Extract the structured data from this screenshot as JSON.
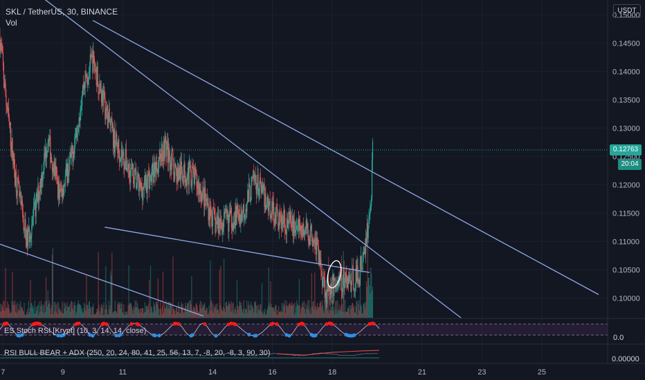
{
  "header": {
    "symbol_line": "SKL / TetherUS, 30, BINANCE",
    "volume_label": "Vol"
  },
  "currency_button": "USDT",
  "price_axis": {
    "ticks": [
      "0.15000",
      "0.14500",
      "0.14000",
      "0.13500",
      "0.13000",
      "0.12500",
      "0.12000",
      "0.11500",
      "0.11000",
      "0.10500",
      "0.10000"
    ],
    "last_price": "0.12763",
    "countdown": "20:04"
  },
  "time_axis": {
    "ticks": [
      "7",
      "9",
      "11",
      "14",
      "16",
      "18",
      "21",
      "23",
      "25"
    ]
  },
  "indicators": {
    "stoch_label": "ES Stoch RSI [Krypt] (10, 3, 14, 14, close)",
    "stoch_tick": "0.0",
    "bullbear_label": "RSI BULL BEAR + ADX (250, 20, 24, 80, 41, 25, 56, 13, 7, -8, 20, -8, 3, 90, 30)",
    "bullbear_tick": "0.00000"
  },
  "colors": {
    "bull": "#26a69a",
    "bear": "#ef5350",
    "trendline": "#8fa8e8",
    "background": "#131722",
    "stoch_high": "#ff1a1a",
    "stoch_low": "#2e8fe6"
  },
  "chart_data": {
    "type": "candlestick",
    "title": "SKL / TetherUS, 30, BINANCE",
    "x_ticks": [
      "7",
      "9",
      "11",
      "14",
      "16",
      "18",
      "21",
      "23",
      "25"
    ],
    "y_ticks": [
      0.15,
      0.145,
      0.14,
      0.135,
      0.13,
      0.125,
      0.12,
      0.115,
      0.11,
      0.105,
      0.1
    ],
    "ylim": [
      0.0965,
      0.1526
    ],
    "last_price": 0.12763,
    "price_path": [
      {
        "x": 6.9,
        "close": 0.146
      },
      {
        "x": 7.1,
        "close": 0.135
      },
      {
        "x": 7.4,
        "close": 0.122
      },
      {
        "x": 7.8,
        "close": 0.11
      },
      {
        "x": 8.1,
        "close": 0.116
      },
      {
        "x": 8.5,
        "close": 0.128
      },
      {
        "x": 8.9,
        "close": 0.118
      },
      {
        "x": 9.3,
        "close": 0.125
      },
      {
        "x": 9.7,
        "close": 0.138
      },
      {
        "x": 10.0,
        "close": 0.142
      },
      {
        "x": 10.3,
        "close": 0.136
      },
      {
        "x": 10.7,
        "close": 0.128
      },
      {
        "x": 11.1,
        "close": 0.124
      },
      {
        "x": 11.6,
        "close": 0.119
      },
      {
        "x": 12.0,
        "close": 0.122
      },
      {
        "x": 12.4,
        "close": 0.127
      },
      {
        "x": 12.8,
        "close": 0.122
      },
      {
        "x": 13.3,
        "close": 0.122
      },
      {
        "x": 13.7,
        "close": 0.118
      },
      {
        "x": 14.1,
        "close": 0.113
      },
      {
        "x": 14.6,
        "close": 0.114
      },
      {
        "x": 15.0,
        "close": 0.115
      },
      {
        "x": 15.4,
        "close": 0.121
      },
      {
        "x": 15.8,
        "close": 0.117
      },
      {
        "x": 16.2,
        "close": 0.114
      },
      {
        "x": 16.6,
        "close": 0.113
      },
      {
        "x": 17.0,
        "close": 0.112
      },
      {
        "x": 17.4,
        "close": 0.111
      },
      {
        "x": 17.8,
        "close": 0.101
      },
      {
        "x": 18.2,
        "close": 0.103
      },
      {
        "x": 18.6,
        "close": 0.103
      },
      {
        "x": 18.9,
        "close": 0.104
      },
      {
        "x": 19.1,
        "close": 0.109
      },
      {
        "x": 19.3,
        "close": 0.1165
      },
      {
        "x": 19.35,
        "close": 0.12763
      }
    ],
    "trendlines": [
      {
        "x": [
          8.2,
          22.3
        ],
        "y": [
          0.1535,
          0.0965
        ]
      },
      {
        "x": [
          10.0,
          26.9
        ],
        "y": [
          0.149,
          0.1006
        ]
      },
      {
        "x": [
          10.4,
          19.25
        ],
        "y": [
          0.1125,
          0.1045
        ]
      },
      {
        "x": [
          6.9,
          13.7
        ],
        "y": [
          0.1095,
          0.0968
        ]
      }
    ],
    "candle_count": 600
  }
}
